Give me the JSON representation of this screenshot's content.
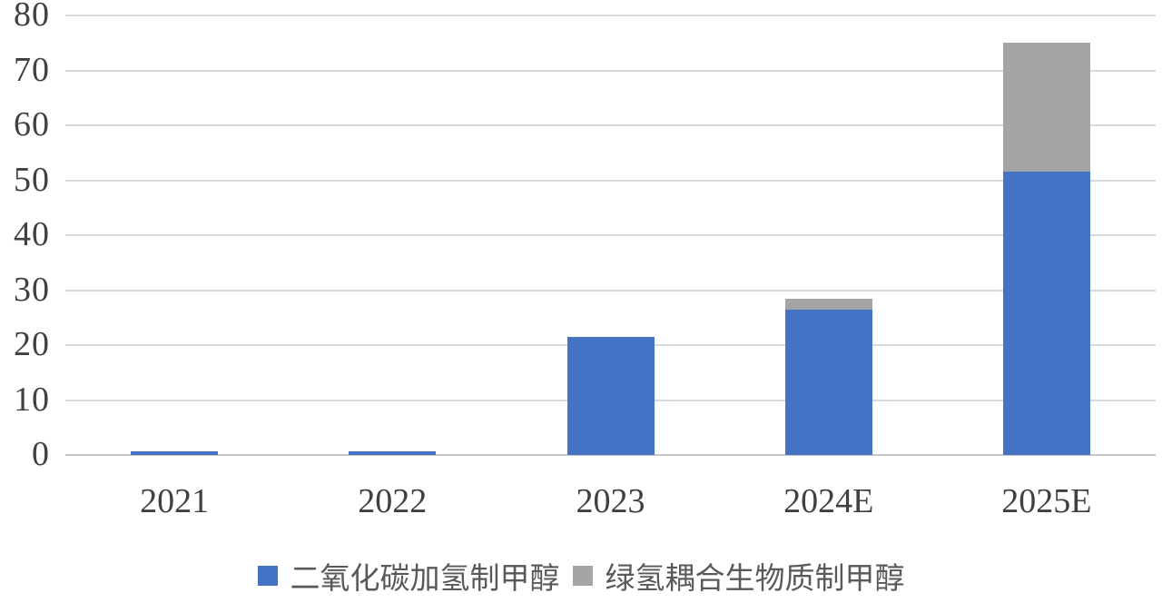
{
  "chart_data": {
    "type": "bar",
    "stacked": true,
    "title": "",
    "xlabel": "",
    "ylabel": "",
    "categories": [
      "2021",
      "2022",
      "2023",
      "2024E",
      "2025E"
    ],
    "series": [
      {
        "name": "二氧化碳加氢制甲醇",
        "color": "#4472c4",
        "values": [
          0.6,
          0.6,
          21.5,
          26.5,
          51.5
        ]
      },
      {
        "name": "绿氢耦合生物质制甲醇",
        "color": "#a5a5a5",
        "values": [
          0,
          0,
          0,
          2.0,
          23.5
        ]
      }
    ],
    "totals": [
      0.6,
      0.6,
      21.5,
      28.5,
      75.0
    ],
    "ylim": [
      0,
      80
    ],
    "yticks": [
      0,
      10,
      20,
      30,
      40,
      50,
      60,
      70,
      80
    ],
    "grid": true,
    "gridline_color": "#d9d9d9",
    "axis_text_color": "#404040",
    "legend_text_color": "#595959",
    "legend_position": "bottom"
  }
}
